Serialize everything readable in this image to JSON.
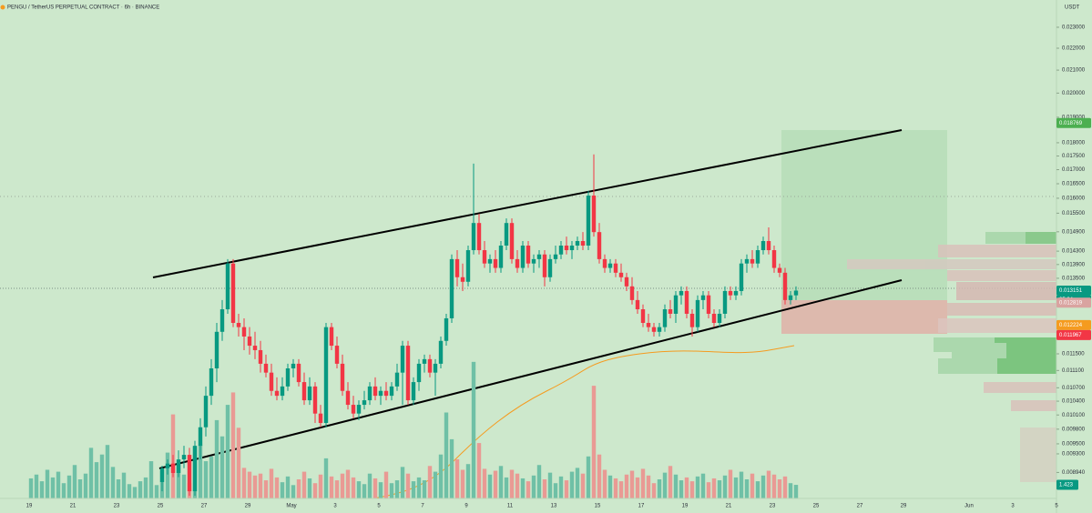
{
  "chart_data": {
    "type": "candlestick",
    "title": "PENGU / TetherUS PERPETUAL CONTRACT · 6h · BINANCE",
    "currency": "USDT",
    "countdown": "05:04",
    "log_scale": true,
    "ylim": [
      0.00846,
      0.02437
    ],
    "yticks": [
      {
        "value": 0.023,
        "label": "0.023000"
      },
      {
        "value": 0.022,
        "label": "0.022000"
      },
      {
        "value": 0.021,
        "label": "0.021000"
      },
      {
        "value": 0.02,
        "label": "0.020000"
      },
      {
        "value": 0.019,
        "label": "0.019000"
      },
      {
        "value": 0.018,
        "label": "0.018000"
      },
      {
        "value": 0.0175,
        "label": "0.017500"
      },
      {
        "value": 0.017,
        "label": "0.017000"
      },
      {
        "value": 0.0165,
        "label": "0.016500"
      },
      {
        "value": 0.016,
        "label": "0.016000"
      },
      {
        "value": 0.0155,
        "label": "0.015500"
      },
      {
        "value": 0.0149,
        "label": "0.014900"
      },
      {
        "value": 0.0143,
        "label": "0.014300"
      },
      {
        "value": 0.0139,
        "label": "0.013900"
      },
      {
        "value": 0.0135,
        "label": "0.013500"
      },
      {
        "value": 0.0115,
        "label": "0.011500"
      },
      {
        "value": 0.0111,
        "label": "0.011100"
      },
      {
        "value": 0.0107,
        "label": "0.010700"
      },
      {
        "value": 0.0104,
        "label": "0.010400"
      },
      {
        "value": 0.0101,
        "label": "0.010100"
      },
      {
        "value": 0.0098,
        "label": "0.009800"
      },
      {
        "value": 0.0095,
        "label": "0.009500"
      },
      {
        "value": 0.0093,
        "label": "0.009300"
      },
      {
        "value": 0.00894,
        "label": "0.008940"
      }
    ],
    "price_badges": [
      {
        "value": 0.018769,
        "label": "0.018769",
        "color": "#4caf50"
      },
      {
        "value": 0.013151,
        "label": "0.013151",
        "color": "#089981"
      },
      {
        "value": 0.012819,
        "label": "0.012819",
        "color": "#d9a3a0"
      },
      {
        "value": 0.012224,
        "label": "0.012224",
        "color": "#f59b1f"
      },
      {
        "value": 0.011967,
        "label": "0.011967",
        "color": "#f23645"
      }
    ],
    "volume_badge": {
      "value": 1.423,
      "label": "1.423",
      "color": "#089981"
    },
    "categories": [
      "19",
      null,
      "21",
      null,
      "23",
      null,
      "25",
      null,
      "27",
      null,
      "29",
      null,
      "May",
      null,
      "3",
      null,
      "5",
      null,
      "7",
      null,
      "9",
      null,
      "11",
      null,
      "13",
      null,
      "15",
      null,
      "17",
      null,
      "19",
      null,
      "21",
      null,
      "23",
      null,
      "25",
      null,
      "27",
      null,
      "29",
      null,
      null,
      "Jun",
      null,
      "3",
      null,
      "5"
    ],
    "up_color": "#089981",
    "down_color": "#f23645",
    "volume_up_color": "#6fc0a6",
    "volume_down_color": "#e99a94",
    "volume_lim": [
      0,
      20
    ],
    "open": [
      null,
      null,
      null,
      null,
      null,
      null,
      null,
      null,
      null,
      null,
      null,
      null,
      null,
      null,
      null,
      null,
      null,
      null,
      null,
      null,
      null,
      null,
      null,
      null,
      0.00876,
      0.00902,
      0.00911,
      0.00893,
      0.00919,
      0.00928,
      0.00859,
      0.00946,
      0.00984,
      0.01052,
      0.01115,
      0.01205,
      0.01264,
      0.01393,
      0.01228,
      0.01217,
      0.01193,
      0.0117,
      0.01159,
      0.01126,
      0.01105,
      0.01063,
      0.01052,
      0.01073,
      0.01115,
      0.01126,
      0.01083,
      0.01042,
      0.01073,
      0.01013,
      0.00993,
      0.01217,
      0.0117,
      0.01126,
      0.01063,
      0.01032,
      0.01013,
      0.01032,
      0.01042,
      0.01073,
      0.01052,
      0.01063,
      0.01052,
      0.01073,
      0.01105,
      0.0117,
      0.01042,
      0.01083,
      0.01126,
      0.01137,
      0.01105,
      0.01126,
      0.01182,
      0.0124,
      0.01406,
      0.01353,
      0.0134,
      0.01433,
      0.01518,
      0.01433,
      0.01393,
      0.01406,
      0.0138,
      0.01447,
      0.01518,
      0.01406,
      0.0138,
      0.01447,
      0.01393,
      0.01406,
      0.0142,
      0.01353,
      0.01406,
      0.0142,
      0.01447,
      0.01433,
      0.01447,
      0.01461,
      0.01447,
      0.01609,
      0.01489,
      0.01406,
      0.0138,
      0.01393,
      0.01366,
      0.01353,
      0.01327,
      0.01289,
      0.01264,
      0.01228,
      0.01217,
      0.01205,
      0.01217,
      0.01264,
      0.01252,
      0.01302,
      0.01314,
      0.01252,
      0.01217,
      0.01289,
      0.01302,
      0.01252,
      0.01228,
      0.01252,
      0.01314,
      0.01302,
      0.01314,
      0.01393,
      0.01406,
      0.01393,
      0.01433,
      0.01461,
      0.01433,
      0.0138,
      0.01366,
      0.01289,
      0.01302
    ],
    "high": [
      null,
      null,
      null,
      null,
      null,
      null,
      null,
      null,
      null,
      null,
      null,
      null,
      null,
      null,
      null,
      null,
      null,
      null,
      null,
      null,
      null,
      null,
      null,
      null,
      0.00907,
      0.00919,
      0.00928,
      0.00937,
      0.00946,
      0.00942,
      0.00956,
      0.01003,
      0.01073,
      0.01137,
      0.01228,
      0.01289,
      0.01406,
      0.01406,
      0.01252,
      0.0124,
      0.01217,
      0.01205,
      0.01182,
      0.01148,
      0.01126,
      0.01094,
      0.01094,
      0.01126,
      0.01137,
      0.01137,
      0.01105,
      0.01094,
      0.01083,
      0.01032,
      0.01228,
      0.01228,
      0.01193,
      0.01148,
      0.01083,
      0.01052,
      0.01042,
      0.01063,
      0.01083,
      0.01094,
      0.01073,
      0.01083,
      0.01083,
      0.01126,
      0.01182,
      0.01182,
      0.01094,
      0.01137,
      0.01148,
      0.01148,
      0.01137,
      0.01193,
      0.01252,
      0.0142,
      0.01433,
      0.01393,
      0.01447,
      0.01722,
      0.01548,
      0.01461,
      0.0142,
      0.01433,
      0.01461,
      0.01533,
      0.01533,
      0.01433,
      0.01461,
      0.01461,
      0.0142,
      0.01433,
      0.01433,
      0.0142,
      0.01447,
      0.01461,
      0.01475,
      0.01461,
      0.01475,
      0.01489,
      0.01625,
      0.01756,
      0.01518,
      0.0142,
      0.01406,
      0.01406,
      0.01393,
      0.01366,
      0.01353,
      0.01314,
      0.01277,
      0.01252,
      0.01228,
      0.01228,
      0.01277,
      0.01289,
      0.01314,
      0.01327,
      0.01327,
      0.01264,
      0.01302,
      0.01314,
      0.01314,
      0.01264,
      0.01264,
      0.01327,
      0.01327,
      0.01327,
      0.01406,
      0.0142,
      0.01433,
      0.01447,
      0.01475,
      0.01504,
      0.01447,
      0.01393,
      0.0138,
      0.01314,
      0.01327
    ],
    "low": [
      null,
      null,
      null,
      null,
      null,
      null,
      null,
      null,
      null,
      null,
      null,
      null,
      null,
      null,
      null,
      null,
      null,
      null,
      null,
      null,
      null,
      null,
      null,
      null,
      0.00859,
      0.0089,
      0.00885,
      0.00885,
      0.00902,
      0.00851,
      0.00851,
      0.00919,
      0.00965,
      0.01032,
      0.01083,
      0.01182,
      0.01252,
      0.01217,
      0.01193,
      0.01159,
      0.01148,
      0.01137,
      0.01105,
      0.01094,
      0.01052,
      0.01042,
      0.01042,
      0.01063,
      0.01094,
      0.01073,
      0.01032,
      0.01032,
      0.00993,
      0.00984,
      0.00984,
      0.01159,
      0.01115,
      0.01052,
      0.01022,
      0.01003,
      0.00999,
      0.01022,
      0.01032,
      0.01042,
      0.01032,
      0.01042,
      0.01042,
      0.01063,
      0.01032,
      0.01032,
      0.01032,
      0.01063,
      0.01105,
      0.01094,
      0.01052,
      0.01115,
      0.0117,
      0.01228,
      0.01327,
      0.01314,
      0.01327,
      0.0142,
      0.0142,
      0.0138,
      0.01366,
      0.01366,
      0.01366,
      0.01433,
      0.01393,
      0.01366,
      0.01366,
      0.0138,
      0.01366,
      0.0138,
      0.01327,
      0.0134,
      0.01393,
      0.01406,
      0.0142,
      0.01406,
      0.01433,
      0.01433,
      0.01433,
      0.01475,
      0.01393,
      0.01366,
      0.01366,
      0.01353,
      0.0134,
      0.01314,
      0.01277,
      0.01252,
      0.01217,
      0.01205,
      0.01193,
      0.01193,
      0.01205,
      0.0124,
      0.01228,
      0.01277,
      0.0124,
      0.01193,
      0.01205,
      0.01264,
      0.0124,
      0.01217,
      0.01217,
      0.0124,
      0.01289,
      0.01289,
      0.01302,
      0.01366,
      0.0138,
      0.0138,
      0.0142,
      0.0142,
      0.01366,
      0.01353,
      0.01277,
      0.01277,
      0.01289
    ],
    "close": [
      null,
      null,
      null,
      null,
      null,
      null,
      null,
      null,
      null,
      null,
      null,
      null,
      null,
      null,
      null,
      null,
      null,
      null,
      null,
      null,
      null,
      null,
      null,
      null,
      0.00902,
      0.00911,
      0.00893,
      0.00919,
      0.00928,
      0.00859,
      0.00946,
      0.00984,
      0.01052,
      0.01115,
      0.01205,
      0.01264,
      0.01393,
      0.01228,
      0.01217,
      0.01193,
      0.0117,
      0.01159,
      0.01126,
      0.01105,
      0.01063,
      0.01052,
      0.01073,
      0.01115,
      0.01126,
      0.01083,
      0.01042,
      0.01073,
      0.01013,
      0.00993,
      0.01217,
      0.0117,
      0.01126,
      0.01063,
      0.01032,
      0.01013,
      0.01032,
      0.01042,
      0.01073,
      0.01052,
      0.01063,
      0.01052,
      0.01073,
      0.01105,
      0.0117,
      0.01042,
      0.01083,
      0.01126,
      0.01137,
      0.01105,
      0.01126,
      0.01182,
      0.0124,
      0.01406,
      0.01353,
      0.0134,
      0.01433,
      0.01518,
      0.01433,
      0.01393,
      0.01406,
      0.0138,
      0.01447,
      0.01518,
      0.01406,
      0.0138,
      0.01447,
      0.01393,
      0.01406,
      0.0142,
      0.01353,
      0.01406,
      0.0142,
      0.01447,
      0.01433,
      0.01447,
      0.01461,
      0.01447,
      0.01609,
      0.01489,
      0.01406,
      0.0138,
      0.01393,
      0.01366,
      0.01353,
      0.01327,
      0.01289,
      0.01264,
      0.01228,
      0.01217,
      0.01205,
      0.01217,
      0.01264,
      0.01252,
      0.01302,
      0.01314,
      0.01252,
      0.01217,
      0.01289,
      0.01302,
      0.01252,
      0.01228,
      0.01252,
      0.01314,
      0.01302,
      0.01314,
      0.01393,
      0.01406,
      0.01393,
      0.01433,
      0.01461,
      0.01433,
      0.0138,
      0.01366,
      0.01289,
      0.01302,
      0.013151
    ],
    "volume": [
      2.1,
      2.5,
      1.8,
      3.0,
      2.2,
      2.8,
      1.6,
      2.4,
      3.5,
      2.0,
      2.6,
      5.3,
      3.8,
      4.6,
      5.6,
      3.3,
      2.0,
      2.7,
      1.5,
      1.2,
      1.8,
      2.2,
      3.9,
      1.4,
      3.0,
      4.8,
      8.8,
      3.5,
      2.5,
      1.6,
      5.4,
      5.6,
      3.9,
      4.4,
      8.2,
      6.5,
      9.8,
      11.1,
      7.4,
      3.2,
      2.8,
      2.4,
      2.6,
      1.9,
      3.1,
      2.2,
      1.7,
      2.3,
      1.4,
      2.0,
      2.8,
      2.1,
      1.6,
      2.5,
      4.2,
      2.3,
      1.9,
      2.6,
      3.0,
      2.2,
      1.8,
      1.5,
      2.6,
      2.1,
      1.7,
      2.8,
      1.6,
      1.9,
      3.3,
      2.6,
      1.8,
      2.2,
      1.9,
      3.4,
      2.8,
      4.6,
      9.0,
      6.2,
      4.1,
      3.0,
      3.6,
      14.3,
      5.8,
      3.1,
      2.5,
      2.9,
      3.4,
      2.2,
      3.0,
      2.6,
      2.1,
      1.8,
      2.4,
      3.5,
      2.0,
      2.7,
      1.6,
      2.3,
      1.9,
      2.8,
      3.2,
      2.6,
      4.4,
      11.8,
      4.6,
      3.0,
      2.4,
      2.1,
      1.8,
      2.5,
      2.9,
      2.2,
      3.1,
      2.4,
      1.6,
      2.0,
      2.7,
      3.4,
      2.5,
      1.9,
      2.2,
      1.8,
      2.3,
      2.6,
      1.7,
      2.1,
      1.9,
      2.4,
      3.0,
      2.2,
      2.8,
      2.0,
      2.6,
      1.8,
      2.4,
      2.9,
      2.5,
      2.0,
      2.3,
      1.6,
      1.423
    ]
  }
}
